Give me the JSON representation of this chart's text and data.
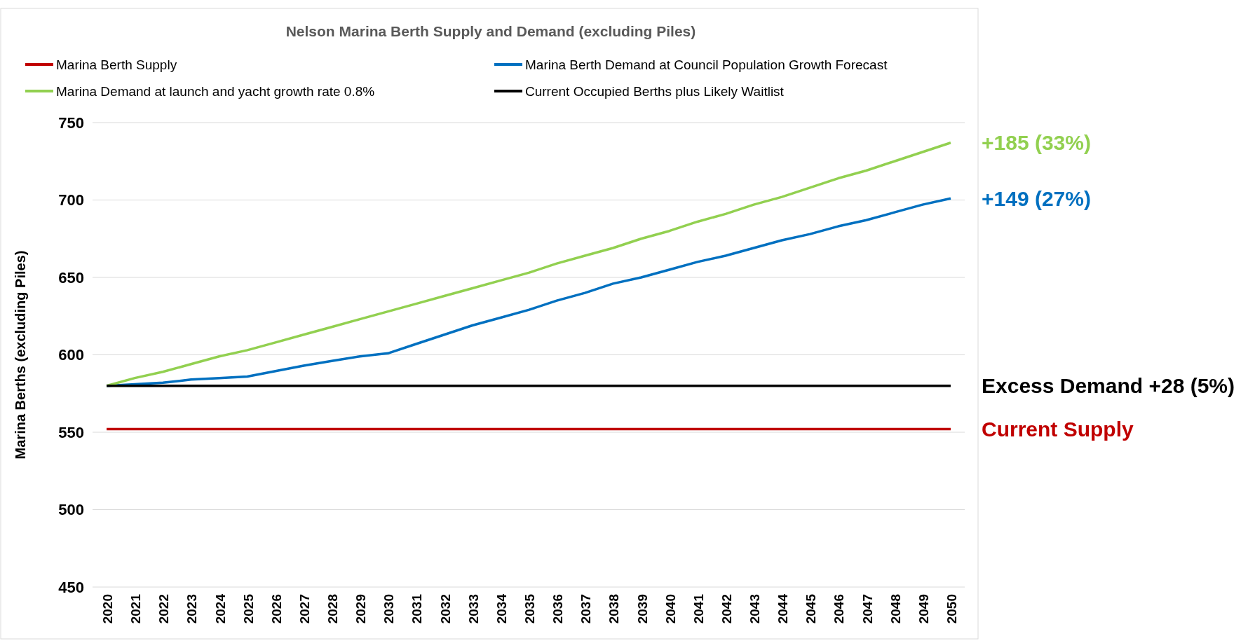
{
  "chart_data": {
    "type": "line",
    "title": "Nelson Marina Berth Supply and Demand (excluding Piles)",
    "ylabel": "Marina Berths (excluding Piles)",
    "categories": [
      "2020",
      "2021",
      "2022",
      "2023",
      "2024",
      "2025",
      "2026",
      "2027",
      "2028",
      "2029",
      "2030",
      "2031",
      "2032",
      "2033",
      "2034",
      "2035",
      "2036",
      "2037",
      "2038",
      "2039",
      "2040",
      "2041",
      "2042",
      "2043",
      "2044",
      "2045",
      "2046",
      "2047",
      "2048",
      "2049",
      "2050"
    ],
    "series": [
      {
        "name": "Marina Berth Supply",
        "color": "#c00000",
        "values": [
          552,
          552,
          552,
          552,
          552,
          552,
          552,
          552,
          552,
          552,
          552,
          552,
          552,
          552,
          552,
          552,
          552,
          552,
          552,
          552,
          552,
          552,
          552,
          552,
          552,
          552,
          552,
          552,
          552,
          552,
          552
        ]
      },
      {
        "name": "Marina Berth Demand at Council Population Growth Forecast",
        "color": "#0070c0",
        "values": [
          580,
          581,
          582,
          584,
          585,
          586,
          589.5,
          593,
          596,
          599,
          601,
          607,
          613,
          619,
          624,
          629,
          635,
          640,
          646,
          650,
          655,
          660,
          664,
          669,
          674,
          678,
          683,
          687,
          692,
          697,
          701
        ]
      },
      {
        "name": "Marina Demand at launch and yacht growth rate 0.8%",
        "color": "#92d050",
        "values": [
          580,
          585,
          589,
          594,
          599,
          603,
          608,
          613,
          618,
          623,
          628,
          633,
          638,
          643,
          648,
          653,
          659,
          664,
          669,
          675,
          680,
          686,
          691,
          697,
          702,
          708,
          714,
          719,
          725,
          731,
          737
        ]
      },
      {
        "name": "Current Occupied Berths plus Likely Waitlist",
        "color": "#000000",
        "values": [
          580,
          580,
          580,
          580,
          580,
          580,
          580,
          580,
          580,
          580,
          580,
          580,
          580,
          580,
          580,
          580,
          580,
          580,
          580,
          580,
          580,
          580,
          580,
          580,
          580,
          580,
          580,
          580,
          580,
          580,
          580
        ]
      }
    ],
    "ylim": [
      450,
      750
    ],
    "yticks": [
      450,
      500,
      550,
      600,
      650,
      700,
      750
    ],
    "grid": "y",
    "legend": "top",
    "marker": "none",
    "line_style": "solid",
    "annotations": [
      {
        "text": "+185 (33%)",
        "x": "2050",
        "y": 737
      },
      {
        "text": "+149 (27%)",
        "x": "2050",
        "y": 701
      },
      {
        "text": "Excess Demand +28  (5%)",
        "x": "2050",
        "y": 580
      },
      {
        "text": "Current Supply",
        "x": "2050",
        "y": 552
      }
    ]
  }
}
